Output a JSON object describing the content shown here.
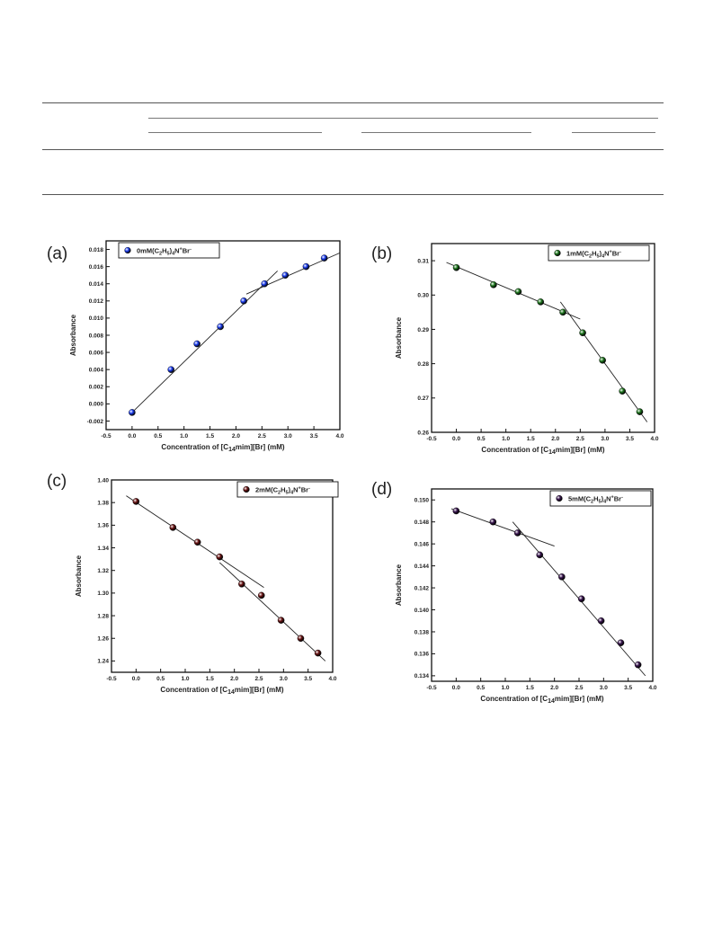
{
  "table_rules": "empty table frame (header rules only, no visible text)",
  "panels": [
    {
      "label": "(a)",
      "chart_data": {
        "type": "scatter",
        "legend": "0mM(C2H5)4N+Br-",
        "legend_position": "top-left",
        "xlabel": "Concentration of [C14mim][Br] (mM)",
        "ylabel": "Absorbance",
        "xlim": [
          -0.5,
          4.0
        ],
        "ylim": [
          -0.003,
          0.019
        ],
        "x_ticks": [
          "-0.5",
          "0.0",
          "0.5",
          "1.0",
          "1.5",
          "2.0",
          "2.5",
          "3.0",
          "3.5",
          "4.0"
        ],
        "y_ticks": [
          "-0.002",
          "0.000",
          "0.002",
          "0.004",
          "0.006",
          "0.008",
          "0.010",
          "0.012",
          "0.014",
          "0.016",
          "0.018"
        ],
        "marker_color": "#1a3cf0",
        "x": [
          0.0,
          0.75,
          1.25,
          1.7,
          2.15,
          2.55,
          2.95,
          3.35,
          3.7
        ],
        "y": [
          -0.001,
          0.004,
          0.007,
          0.009,
          0.012,
          0.014,
          0.015,
          0.016,
          0.017
        ],
        "fit_lines": [
          {
            "x": [
              0.0,
              2.8
            ],
            "y": [
              -0.001,
              0.0155
            ]
          },
          {
            "x": [
              2.2,
              4.0
            ],
            "y": [
              0.0128,
              0.0176
            ]
          }
        ]
      }
    },
    {
      "label": "(b)",
      "chart_data": {
        "type": "scatter",
        "legend": "1mM(C2H5)4N+Br-",
        "legend_position": "top-right",
        "xlabel": "Concentration of [C14mim][Br] (mM)",
        "ylabel": "Absorbance",
        "xlim": [
          -0.5,
          4.0
        ],
        "ylim": [
          0.26,
          0.315
        ],
        "x_ticks": [
          "-0.5",
          "0.0",
          "0.5",
          "1.0",
          "1.5",
          "2.0",
          "2.5",
          "3.0",
          "3.5",
          "4.0"
        ],
        "y_ticks": [
          "0.26",
          "0.27",
          "0.28",
          "0.29",
          "0.30",
          "0.31"
        ],
        "marker_color": "#1f7a1f",
        "x": [
          0.0,
          0.75,
          1.25,
          1.7,
          2.15,
          2.55,
          2.95,
          3.35,
          3.7
        ],
        "y": [
          0.308,
          0.303,
          0.301,
          0.298,
          0.295,
          0.289,
          0.281,
          0.272,
          0.266
        ],
        "fit_lines": [
          {
            "x": [
              -0.2,
              2.5
            ],
            "y": [
              0.3095,
              0.293
            ]
          },
          {
            "x": [
              2.1,
              3.85
            ],
            "y": [
              0.298,
              0.263
            ]
          }
        ]
      }
    },
    {
      "label": "(c)",
      "chart_data": {
        "type": "scatter",
        "legend": "2mM(C2H5)4N+Br-",
        "legend_position": "top-right",
        "xlabel": "Concentration of [C14mim][Br] (mM)",
        "ylabel": "Absorbance",
        "xlim": [
          -0.5,
          4.0
        ],
        "ylim": [
          1.23,
          1.4
        ],
        "x_ticks": [
          "-0.5",
          "0.0",
          "0.5",
          "1.0",
          "1.5",
          "2.0",
          "2.5",
          "3.0",
          "3.5",
          "4.0"
        ],
        "y_ticks": [
          "1.24",
          "1.26",
          "1.28",
          "1.30",
          "1.32",
          "1.34",
          "1.36",
          "1.38",
          "1.40"
        ],
        "marker_color": "#6b1414",
        "x": [
          0.0,
          0.75,
          1.25,
          1.7,
          2.15,
          2.55,
          2.95,
          3.35,
          3.7
        ],
        "y": [
          1.381,
          1.358,
          1.345,
          1.332,
          1.308,
          1.298,
          1.276,
          1.26,
          1.247
        ],
        "fit_lines": [
          {
            "x": [
              -0.2,
              2.6
            ],
            "y": [
              1.386,
              1.305
            ]
          },
          {
            "x": [
              1.7,
              3.85
            ],
            "y": [
              1.327,
              1.24
            ]
          }
        ]
      }
    },
    {
      "label": "(d)",
      "chart_data": {
        "type": "scatter",
        "legend": "5mM(C2H5)4N+Br-",
        "legend_position": "top-right",
        "xlabel": "Concentration of [C14mim][Br] (mM)",
        "ylabel": "Absorbance",
        "xlim": [
          -0.5,
          4.0
        ],
        "ylim": [
          0.1335,
          0.151
        ],
        "x_ticks": [
          "-0.5",
          "0.0",
          "0.5",
          "1.0",
          "1.5",
          "2.0",
          "2.5",
          "3.0",
          "3.5",
          "4.0"
        ],
        "y_ticks": [
          "0.134",
          "0.136",
          "0.138",
          "0.140",
          "0.142",
          "0.144",
          "0.146",
          "0.148",
          "0.150"
        ],
        "marker_color": "#3a1550",
        "x": [
          0.0,
          0.75,
          1.25,
          1.7,
          2.15,
          2.55,
          2.95,
          3.35,
          3.7
        ],
        "y": [
          0.149,
          0.148,
          0.147,
          0.145,
          0.143,
          0.141,
          0.139,
          0.137,
          0.135
        ],
        "fit_lines": [
          {
            "x": [
              -0.1,
              2.0
            ],
            "y": [
              0.1492,
              0.1458
            ]
          },
          {
            "x": [
              1.15,
              3.85
            ],
            "y": [
              0.148,
              0.134
            ]
          }
        ]
      }
    }
  ]
}
